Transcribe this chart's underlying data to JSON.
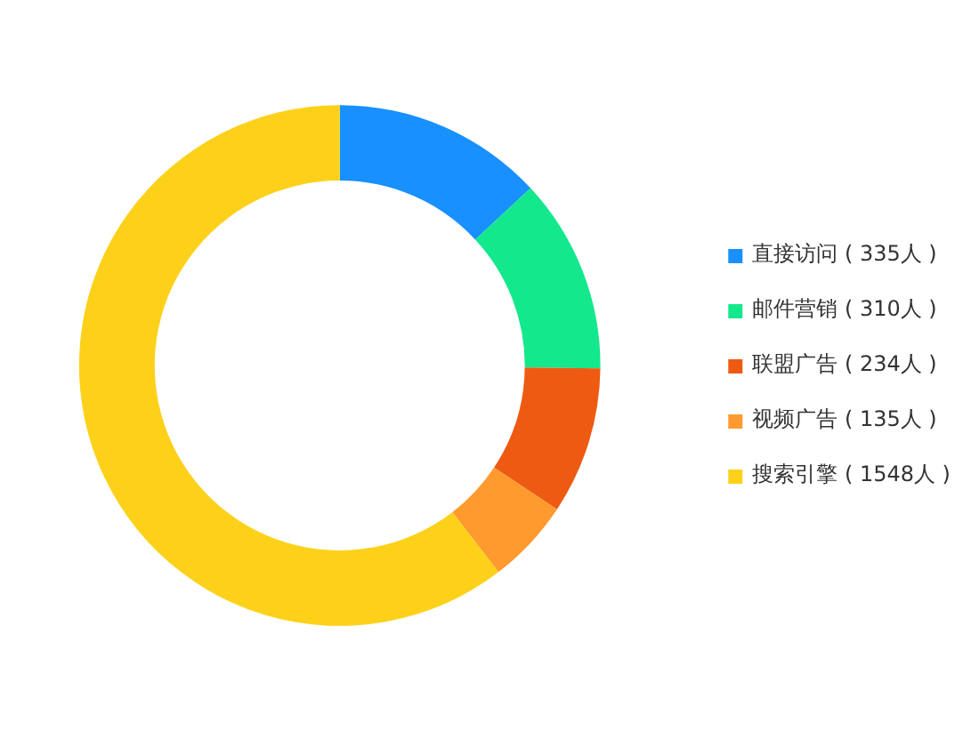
{
  "chart_data": {
    "type": "donut",
    "categories": [
      "直接访问 ( 335人 )",
      "邮件营销 ( 310人 )",
      "联盟广告 ( 234人 )",
      "视频广告 ( 135人 )",
      "搜索引擎 ( 1548人 )"
    ],
    "values": [
      335,
      310,
      234,
      135,
      1548
    ],
    "colors": [
      "#1890ff",
      "#13e88c",
      "#ef5a12",
      "#ff9a2e",
      "#fdd11a"
    ],
    "legend": "right"
  }
}
